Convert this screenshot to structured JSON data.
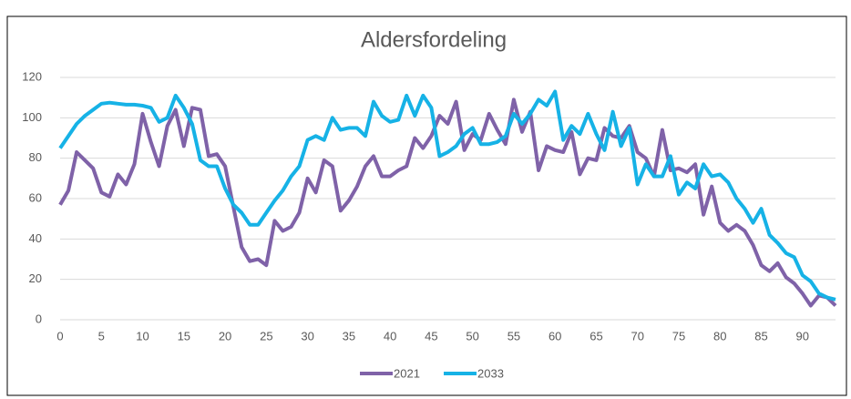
{
  "chart_data": {
    "type": "line",
    "title": "Aldersfordeling",
    "x": [
      0,
      1,
      2,
      3,
      4,
      5,
      6,
      7,
      8,
      9,
      10,
      11,
      12,
      13,
      14,
      15,
      16,
      17,
      18,
      19,
      20,
      21,
      22,
      23,
      24,
      25,
      26,
      27,
      28,
      29,
      30,
      31,
      32,
      33,
      34,
      35,
      36,
      37,
      38,
      39,
      40,
      41,
      42,
      43,
      44,
      45,
      46,
      47,
      48,
      49,
      50,
      51,
      52,
      53,
      54,
      55,
      56,
      57,
      58,
      59,
      60,
      61,
      62,
      63,
      64,
      65,
      66,
      67,
      68,
      69,
      70,
      71,
      72,
      73,
      74,
      75,
      76,
      77,
      78,
      79,
      80,
      81,
      82,
      83,
      84,
      85,
      86,
      87,
      88,
      89,
      90,
      91,
      92,
      93,
      94
    ],
    "series": [
      {
        "name": "2021",
        "color": "#7f62a8",
        "values": [
          57,
          64,
          83,
          79,
          75,
          63,
          61,
          72,
          67,
          77,
          102,
          88,
          76,
          96,
          104,
          86,
          105,
          104,
          81,
          82,
          76,
          56,
          36,
          29,
          30,
          27,
          49,
          44,
          46,
          53,
          70,
          63,
          79,
          76,
          54,
          59,
          66,
          76,
          81,
          71,
          71,
          74,
          76,
          90,
          85,
          91,
          101,
          97,
          108,
          84,
          92,
          89,
          102,
          94,
          87,
          109,
          93,
          103,
          74,
          86,
          84,
          83,
          93,
          72,
          80,
          79,
          95,
          91,
          90,
          96,
          83,
          80,
          71,
          94,
          74,
          75,
          73,
          77,
          52,
          66,
          48,
          44,
          47,
          44,
          37,
          27,
          24,
          28,
          21,
          18,
          13,
          7,
          12,
          11,
          7
        ]
      },
      {
        "name": "2033",
        "color": "#16b2e6",
        "values": [
          85,
          91,
          97,
          101,
          104,
          107,
          107.5,
          107,
          106.5,
          106.5,
          106,
          105,
          98,
          100,
          111,
          105,
          97,
          79,
          76,
          76,
          65,
          57,
          53,
          47,
          47,
          53,
          59,
          64,
          71,
          76,
          89,
          91,
          89,
          100,
          94,
          95,
          95,
          91,
          108,
          101,
          98,
          99,
          111,
          101,
          111,
          105,
          81,
          83,
          86,
          92,
          95,
          87,
          87,
          88,
          91,
          102,
          97,
          102,
          109,
          106,
          113,
          89,
          96,
          92,
          102,
          92,
          84,
          103,
          86,
          95,
          67,
          77,
          71,
          71,
          81,
          62,
          68,
          65,
          77,
          71,
          72,
          68,
          60,
          55,
          48,
          55,
          42,
          38,
          33,
          31,
          22,
          19,
          13,
          11,
          10
        ]
      }
    ],
    "xlim": [
      0,
      94
    ],
    "xticks": [
      0,
      5,
      10,
      15,
      20,
      25,
      30,
      35,
      40,
      45,
      50,
      55,
      60,
      65,
      70,
      75,
      80,
      85,
      90
    ],
    "ylim": [
      0,
      120
    ],
    "yticks": [
      0,
      20,
      40,
      60,
      80,
      100,
      120
    ],
    "grid": true,
    "legend": "bottom"
  }
}
